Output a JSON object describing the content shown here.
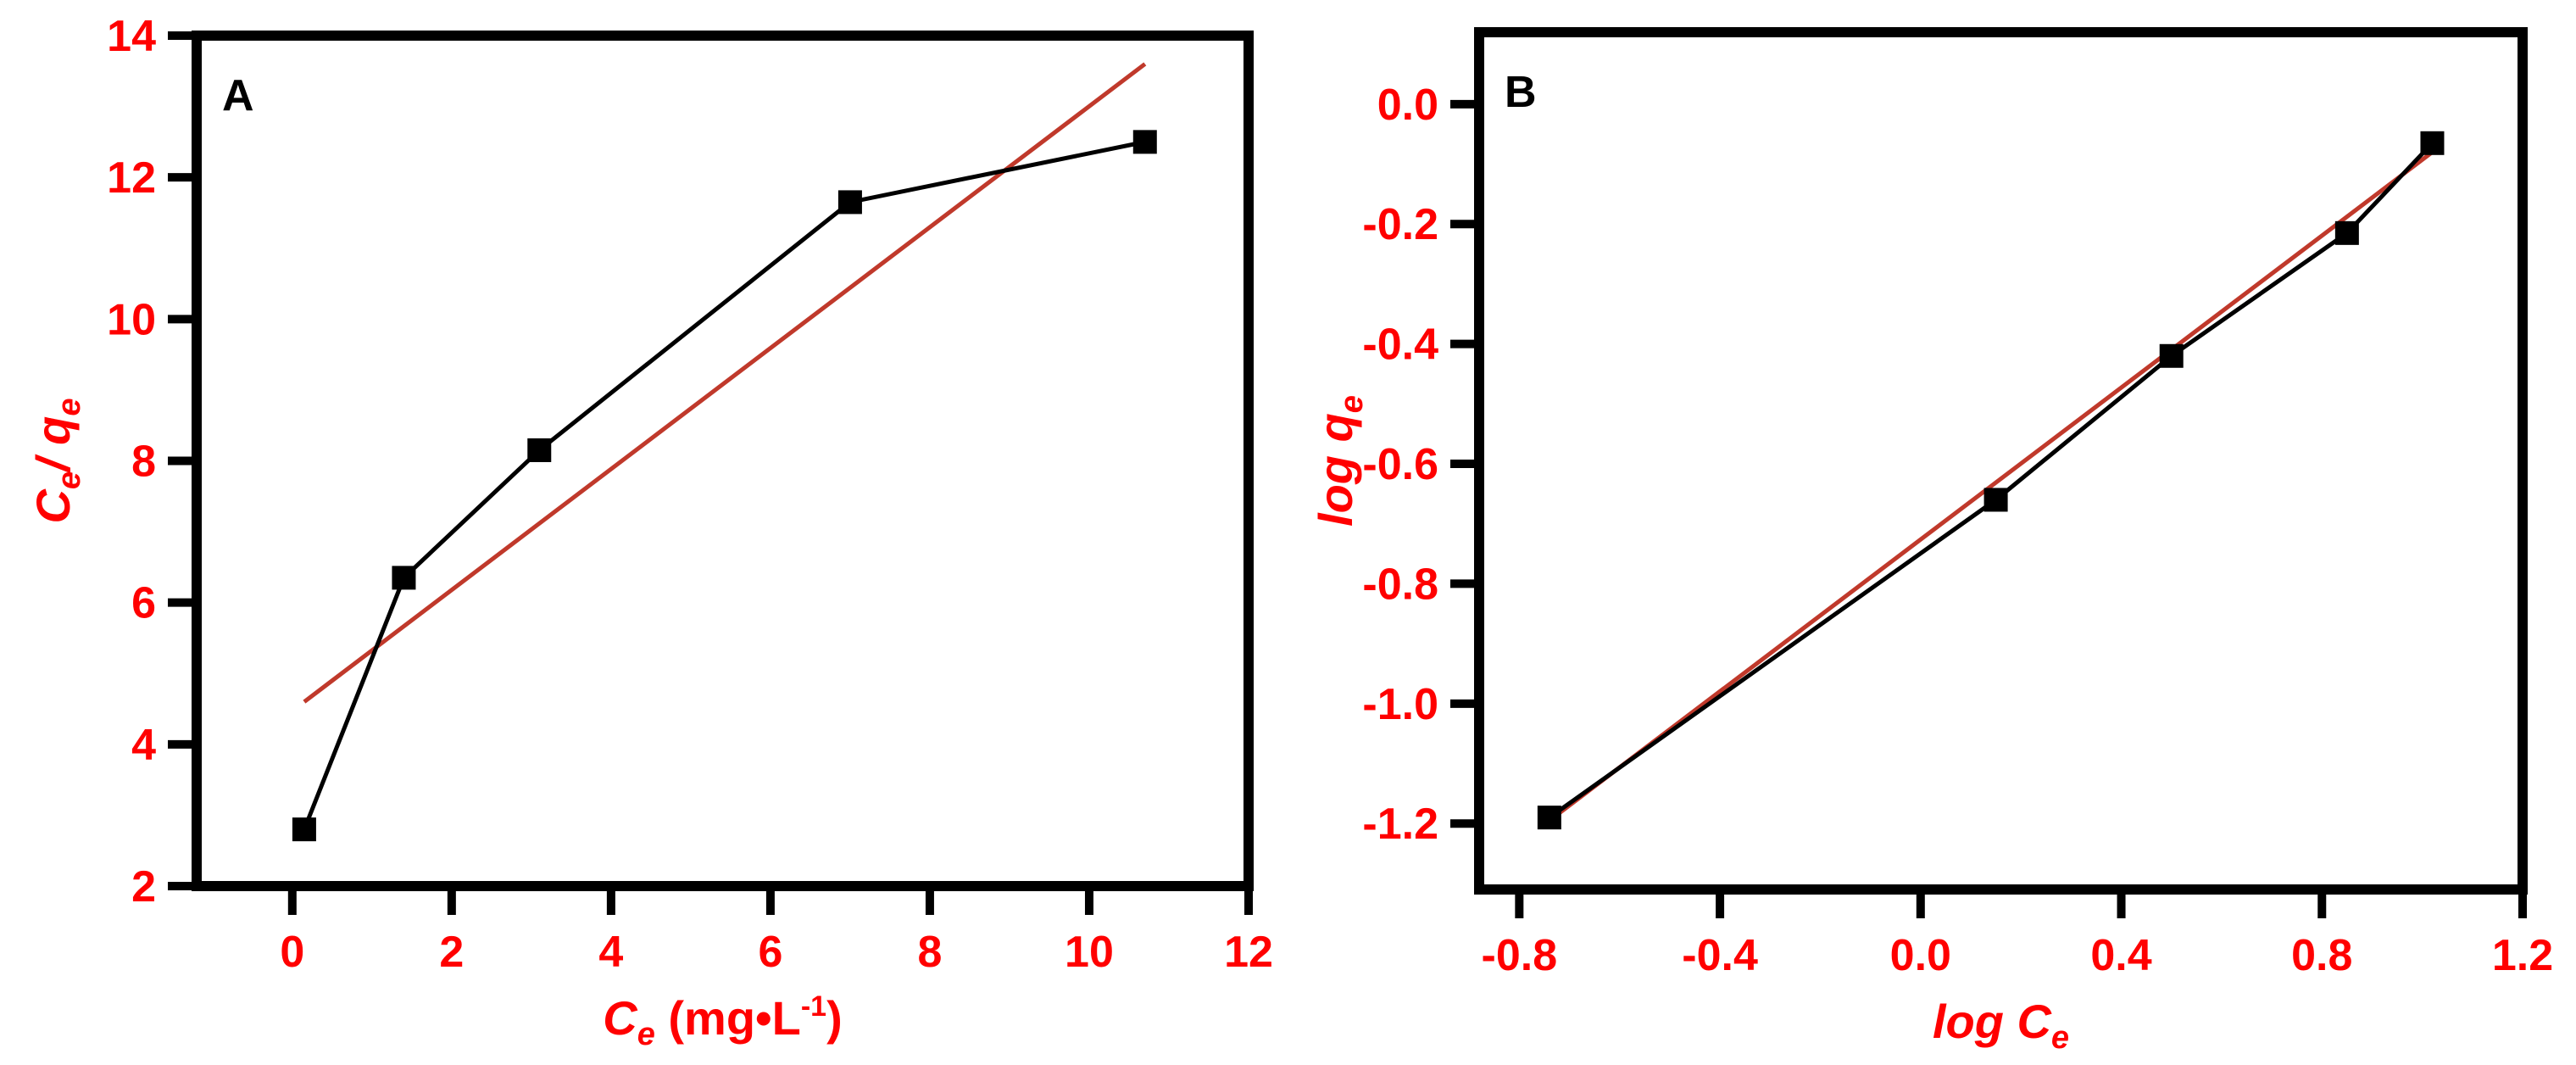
{
  "chart_data": [
    {
      "type": "line",
      "panel": "A",
      "xlabel": {
        "main": "C",
        "sub": "e",
        "units": " (mg•L",
        "sup": "-1",
        "close": ")"
      },
      "ylabel": {
        "a": "C",
        "asub": "e",
        "sep": "/ ",
        "b": "q",
        "bsub": "e"
      },
      "xlim": [
        -1.2,
        12
      ],
      "ylim": [
        2,
        14
      ],
      "xticks": [
        0,
        2,
        4,
        6,
        8,
        10,
        12
      ],
      "xtick_labels": [
        "0",
        "2",
        "4",
        "6",
        "8",
        "10",
        "12"
      ],
      "yticks": [
        2,
        4,
        6,
        8,
        10,
        12,
        14
      ],
      "ytick_labels": [
        "2",
        "4",
        "6",
        "8",
        "10",
        "12",
        "14"
      ],
      "series": [
        {
          "x": [
            0.15,
            1.4,
            3.1,
            7.0,
            10.7
          ],
          "y": [
            2.8,
            6.35,
            8.15,
            11.65,
            12.5
          ]
        }
      ],
      "fit_line": {
        "x": [
          0.15,
          10.7
        ],
        "y": [
          4.6,
          13.6
        ]
      },
      "grid": false,
      "colors": {
        "axis": "#000000",
        "labels": "#ff0000",
        "series": "#000000",
        "fit": "#c0392b"
      }
    },
    {
      "type": "line",
      "panel": "B",
      "xlabel": {
        "main": "log C",
        "sub": "e"
      },
      "ylabel": {
        "main": "log q",
        "sub": "e"
      },
      "xlim": [
        -0.88,
        1.2
      ],
      "ylim": [
        -1.31,
        0.12
      ],
      "xticks": [
        -0.8,
        -0.4,
        0.0,
        0.4,
        0.8,
        1.2
      ],
      "xtick_labels": [
        "-0.8",
        "-0.4",
        "0.0",
        "0.4",
        "0.8",
        "1.2"
      ],
      "yticks": [
        0.0,
        -0.2,
        -0.4,
        -0.6,
        -0.8,
        -1.0,
        -1.2
      ],
      "ytick_labels": [
        "0.0",
        "-0.2",
        "-0.4",
        "-0.6",
        "-0.8",
        "-1.0",
        "-1.2"
      ],
      "series": [
        {
          "x": [
            -0.74,
            0.15,
            0.5,
            0.85,
            1.02
          ],
          "y": [
            -1.19,
            -0.66,
            -0.42,
            -0.215,
            -0.065
          ]
        }
      ],
      "fit_line": {
        "x": [
          -0.74,
          1.02
        ],
        "y": [
          -1.195,
          -0.08
        ]
      },
      "grid": false,
      "colors": {
        "axis": "#000000",
        "labels": "#ff0000",
        "series": "#000000",
        "fit": "#c0392b"
      }
    }
  ]
}
